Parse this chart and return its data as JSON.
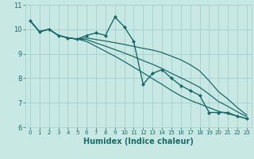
{
  "xlabel": "Humidex (Indice chaleur)",
  "xlim": [
    -0.5,
    23.5
  ],
  "ylim": [
    6,
    11
  ],
  "yticks": [
    6,
    7,
    8,
    9,
    10,
    11
  ],
  "xticks": [
    0,
    1,
    2,
    3,
    4,
    5,
    6,
    7,
    8,
    9,
    10,
    11,
    12,
    13,
    14,
    15,
    16,
    17,
    18,
    19,
    20,
    21,
    22,
    23
  ],
  "bg_color": "#c8e8e4",
  "grid_color": "#a8d0cc",
  "line_color": "#1a6b6b",
  "lines": [
    {
      "x": [
        0,
        1,
        2,
        3,
        4,
        5,
        6,
        7,
        8,
        9,
        10,
        11,
        12,
        13,
        14,
        15,
        16,
        17,
        18,
        19,
        20,
        21,
        22,
        23
      ],
      "y": [
        10.35,
        9.9,
        10.0,
        9.75,
        9.65,
        9.6,
        9.75,
        9.85,
        9.75,
        10.5,
        10.1,
        9.5,
        7.75,
        8.2,
        8.35,
        8.0,
        7.7,
        7.5,
        7.3,
        6.6,
        6.6,
        6.6,
        6.45,
        6.35
      ],
      "marker": "D",
      "markersize": 2.0,
      "linewidth": 1.0
    },
    {
      "x": [
        0,
        1,
        2,
        3,
        4,
        5,
        6,
        7,
        8,
        9,
        10,
        11,
        12,
        13,
        14,
        15,
        16,
        17,
        18,
        19,
        20,
        21,
        22,
        23
      ],
      "y": [
        10.35,
        9.9,
        10.0,
        9.75,
        9.65,
        9.6,
        9.65,
        9.58,
        9.52,
        9.45,
        9.38,
        9.3,
        9.22,
        9.15,
        9.05,
        8.9,
        8.75,
        8.55,
        8.3,
        7.9,
        7.45,
        7.15,
        6.8,
        6.5
      ],
      "marker": null,
      "linewidth": 0.9
    },
    {
      "x": [
        0,
        1,
        2,
        3,
        4,
        5,
        6,
        7,
        8,
        9,
        10,
        11,
        12,
        13,
        14,
        15,
        16,
        17,
        18,
        19,
        20,
        21,
        22,
        23
      ],
      "y": [
        10.35,
        9.9,
        10.0,
        9.75,
        9.65,
        9.6,
        9.5,
        9.3,
        9.1,
        8.9,
        8.68,
        8.45,
        8.22,
        7.98,
        7.75,
        7.5,
        7.28,
        7.1,
        6.95,
        6.8,
        6.65,
        6.55,
        6.45,
        6.35
      ],
      "marker": null,
      "linewidth": 0.9
    },
    {
      "x": [
        0,
        1,
        2,
        3,
        4,
        5,
        6,
        7,
        8,
        9,
        10,
        11,
        12,
        13,
        14,
        15,
        16,
        17,
        18,
        19,
        20,
        21,
        22,
        23
      ],
      "y": [
        10.35,
        9.9,
        10.0,
        9.75,
        9.65,
        9.6,
        9.58,
        9.44,
        9.31,
        9.17,
        9.03,
        8.88,
        8.72,
        8.57,
        8.4,
        8.2,
        8.02,
        7.83,
        7.63,
        7.35,
        7.05,
        6.85,
        6.63,
        6.43
      ],
      "marker": null,
      "linewidth": 0.9
    }
  ],
  "tick_color": "#1a6b6b",
  "xlabel_fontsize": 7,
  "xlabel_fontweight": "bold",
  "ytick_fontsize": 6,
  "xtick_fontsize": 5
}
